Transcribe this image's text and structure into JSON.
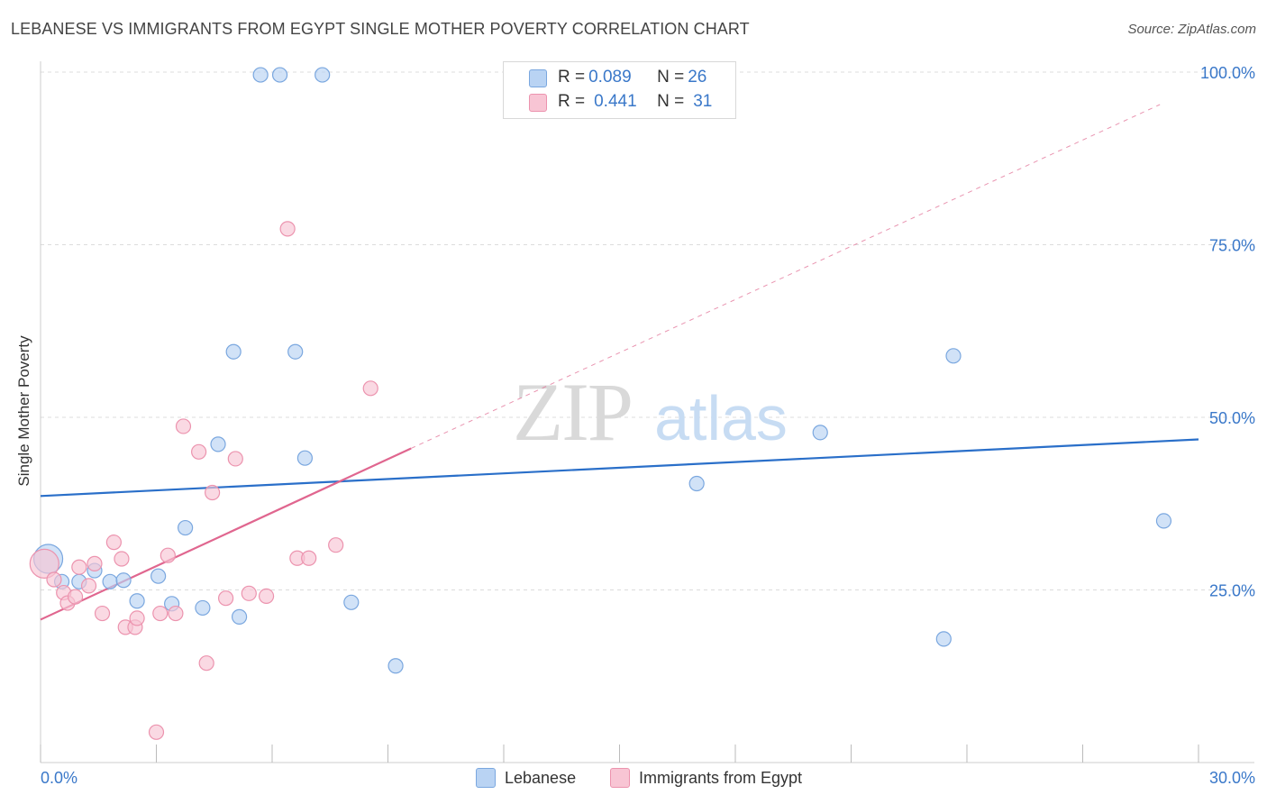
{
  "title": "LEBANESE VS IMMIGRANTS FROM EGYPT SINGLE MOTHER POVERTY CORRELATION CHART",
  "source": "Source: ZipAtlas.com",
  "watermark": {
    "zip": "ZIP",
    "atlas": "atlas"
  },
  "colors": {
    "blue_fill": "#b9d3f3",
    "blue_stroke": "#7aa7df",
    "blue_line": "#2a6fc9",
    "pink_fill": "#f8c5d4",
    "pink_stroke": "#ec93ae",
    "pink_line": "#e0668f",
    "grid": "#dcdcdc",
    "axis_text": "#3a78c9"
  },
  "legend_top": {
    "rows": [
      {
        "r_label": "R = ",
        "r_value": "0.089",
        "n_label": "N = ",
        "n_value": "26"
      },
      {
        "r_label": "R = ",
        "r_value": "0.441",
        "n_label": "N = ",
        "n_value": "31"
      }
    ]
  },
  "legend_bottom": [
    "Lebanese",
    "Immigrants from Egypt"
  ],
  "chart_data": {
    "type": "scatter",
    "title": "LEBANESE VS IMMIGRANTS FROM EGYPT SINGLE MOTHER POVERTY CORRELATION CHART",
    "xlabel": "",
    "ylabel": "Single Mother Poverty",
    "xlim": [
      0,
      30
    ],
    "ylim": [
      0,
      100
    ],
    "x_tick_labels": [
      "0.0%",
      "30.0%"
    ],
    "y_ticks": [
      25,
      50,
      75,
      100
    ],
    "y_tick_labels": [
      "25.0%",
      "50.0%",
      "75.0%",
      "100.0%"
    ],
    "series": [
      {
        "name": "Lebanese",
        "R": 0.089,
        "N": 26,
        "trend": {
          "x": [
            0,
            30
          ],
          "y": [
            38.6,
            46.8
          ],
          "style": "solid"
        },
        "points": [
          {
            "x": 0.2,
            "y": 29.5,
            "big": true
          },
          {
            "x": 0.55,
            "y": 26.2
          },
          {
            "x": 1.0,
            "y": 26.2
          },
          {
            "x": 1.4,
            "y": 27.8
          },
          {
            "x": 1.8,
            "y": 26.2
          },
          {
            "x": 2.15,
            "y": 26.4
          },
          {
            "x": 2.5,
            "y": 23.4
          },
          {
            "x": 3.05,
            "y": 27.0
          },
          {
            "x": 3.4,
            "y": 23.0
          },
          {
            "x": 3.75,
            "y": 34.0
          },
          {
            "x": 4.2,
            "y": 22.4
          },
          {
            "x": 4.6,
            "y": 46.1
          },
          {
            "x": 5.0,
            "y": 59.5
          },
          {
            "x": 5.15,
            "y": 21.1
          },
          {
            "x": 5.7,
            "y": 99.6
          },
          {
            "x": 6.2,
            "y": 99.6
          },
          {
            "x": 6.6,
            "y": 59.5
          },
          {
            "x": 6.85,
            "y": 44.1
          },
          {
            "x": 7.3,
            "y": 99.6
          },
          {
            "x": 8.05,
            "y": 23.2
          },
          {
            "x": 9.2,
            "y": 14.0
          },
          {
            "x": 17.0,
            "y": 40.4
          },
          {
            "x": 20.2,
            "y": 47.8
          },
          {
            "x": 23.4,
            "y": 17.9
          },
          {
            "x": 23.65,
            "y": 58.9
          },
          {
            "x": 29.1,
            "y": 35.0
          }
        ]
      },
      {
        "name": "Immigrants from Egypt",
        "R": 0.441,
        "N": 31,
        "trend": {
          "x": [
            0,
            9.6
          ],
          "y": [
            20.7,
            45.5
          ],
          "style": "solid",
          "extended": {
            "x": [
              9.6,
              29.0
            ],
            "y": [
              45.5,
              95.3
            ],
            "style": "dashed"
          }
        },
        "points": [
          {
            "x": 0.1,
            "y": 28.8,
            "big": true
          },
          {
            "x": 0.35,
            "y": 26.5
          },
          {
            "x": 0.6,
            "y": 24.6
          },
          {
            "x": 0.7,
            "y": 23.1
          },
          {
            "x": 0.9,
            "y": 24.0
          },
          {
            "x": 1.0,
            "y": 28.3
          },
          {
            "x": 1.25,
            "y": 25.6
          },
          {
            "x": 1.4,
            "y": 28.8
          },
          {
            "x": 1.6,
            "y": 21.6
          },
          {
            "x": 1.9,
            "y": 31.9
          },
          {
            "x": 2.1,
            "y": 29.5
          },
          {
            "x": 2.2,
            "y": 19.6
          },
          {
            "x": 2.45,
            "y": 19.6
          },
          {
            "x": 2.5,
            "y": 20.9
          },
          {
            "x": 3.1,
            "y": 21.6
          },
          {
            "x": 3.3,
            "y": 30.0
          },
          {
            "x": 3.5,
            "y": 21.6
          },
          {
            "x": 3.7,
            "y": 48.7
          },
          {
            "x": 4.1,
            "y": 45.0
          },
          {
            "x": 4.3,
            "y": 14.4
          },
          {
            "x": 4.45,
            "y": 39.1
          },
          {
            "x": 4.8,
            "y": 23.8
          },
          {
            "x": 5.05,
            "y": 44.0
          },
          {
            "x": 5.4,
            "y": 24.5
          },
          {
            "x": 5.85,
            "y": 24.1
          },
          {
            "x": 6.4,
            "y": 77.3
          },
          {
            "x": 6.65,
            "y": 29.6
          },
          {
            "x": 6.95,
            "y": 29.6
          },
          {
            "x": 7.65,
            "y": 31.5
          },
          {
            "x": 8.55,
            "y": 54.2
          },
          {
            "x": 3.0,
            "y": 4.4
          }
        ]
      }
    ]
  }
}
